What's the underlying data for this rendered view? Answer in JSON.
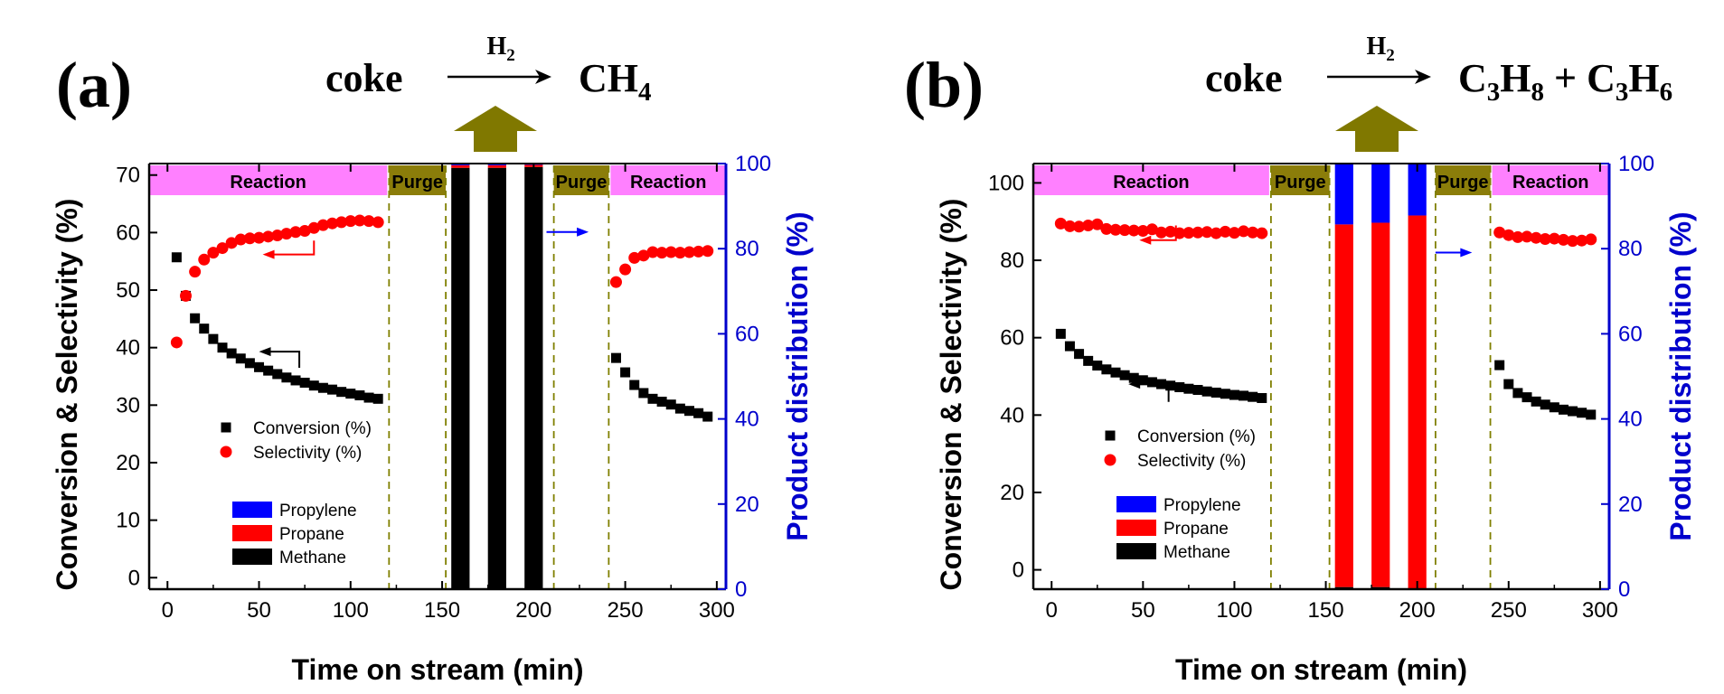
{
  "figure": {
    "colors": {
      "conversion": "#000000",
      "selectivity": "#ff0000",
      "propylene": "#0000ff",
      "propane": "#ff0000",
      "methane": "#000000",
      "reaction_box": "#ff80ff",
      "purge_box": "#8b7d0a",
      "arrow_olive": "#807800",
      "right_axis": "#0000cc",
      "dashed_line": "#808000"
    }
  },
  "chart_data": [
    {
      "panel": "(a)",
      "type": "scatter",
      "equation": {
        "reactant": "coke",
        "over_arrow": "H",
        "over_arrow_sub": "2",
        "product_parts": [
          [
            "CH",
            "4"
          ]
        ]
      },
      "xlabel": "Time on stream (min)",
      "ylabel": "Conversion & Selectivity (%)",
      "y2label": "Product distribution (%)",
      "xlim": [
        -10,
        305
      ],
      "ylim": [
        -2,
        72
      ],
      "y2lim": [
        0,
        100
      ],
      "xticks": [
        0,
        50,
        100,
        150,
        200,
        250,
        300
      ],
      "yticks": [
        0,
        10,
        20,
        30,
        40,
        50,
        60,
        70
      ],
      "y2ticks": [
        0,
        20,
        40,
        60,
        80,
        100
      ],
      "phases": [
        {
          "label": "Reaction",
          "start": -10,
          "end": 120,
          "kind": "reaction"
        },
        {
          "label": "Purge",
          "start": 121,
          "end": 152,
          "kind": "purge"
        },
        {
          "label": "Purge",
          "start": 211,
          "end": 241,
          "kind": "purge"
        },
        {
          "label": "Reaction",
          "start": 242,
          "end": 305,
          "kind": "reaction"
        }
      ],
      "dashed_x": [
        121,
        152,
        211,
        241
      ],
      "series": [
        {
          "name": "Conversion (%)",
          "marker": "square",
          "x": [
            5,
            10,
            15,
            20,
            25,
            30,
            35,
            40,
            45,
            50,
            55,
            60,
            65,
            70,
            75,
            80,
            85,
            90,
            95,
            100,
            105,
            110,
            115,
            245,
            250,
            255,
            260,
            265,
            270,
            275,
            280,
            285,
            290,
            295
          ],
          "y": [
            55.7,
            49.0,
            45.1,
            43.3,
            41.5,
            40.0,
            39.0,
            38.1,
            37.3,
            36.6,
            36.0,
            35.4,
            34.8,
            34.3,
            33.9,
            33.4,
            33.0,
            32.7,
            32.3,
            32.0,
            31.7,
            31.3,
            31.1,
            38.2,
            35.7,
            33.5,
            32.1,
            31.1,
            30.6,
            30.1,
            29.4,
            29.0,
            28.6,
            28.0
          ]
        },
        {
          "name": "Selectivity (%)",
          "marker": "circle",
          "x": [
            5,
            10,
            15,
            20,
            25,
            30,
            35,
            40,
            45,
            50,
            55,
            60,
            65,
            70,
            75,
            80,
            85,
            90,
            95,
            100,
            105,
            110,
            115,
            245,
            250,
            255,
            260,
            265,
            270,
            275,
            280,
            285,
            290,
            295
          ],
          "y": [
            40.9,
            49.0,
            53.2,
            55.3,
            56.5,
            57.3,
            58.2,
            58.8,
            59.0,
            59.1,
            59.3,
            59.5,
            59.8,
            60.1,
            60.3,
            60.8,
            61.3,
            61.6,
            61.8,
            62.0,
            62.1,
            62.0,
            61.8,
            51.4,
            53.6,
            55.6,
            56.0,
            56.6,
            56.5,
            56.6,
            56.5,
            56.6,
            56.7,
            56.8
          ]
        }
      ],
      "bars": [
        {
          "x": 160,
          "width": 10,
          "methane": 99.0,
          "propane": 0.6,
          "propylene": 0.4
        },
        {
          "x": 180,
          "width": 10,
          "methane": 99.0,
          "propane": 0.6,
          "propylene": 0.4
        },
        {
          "x": 200,
          "width": 10,
          "methane": 99.2,
          "propane": 0.5,
          "propylene": 0.3
        }
      ],
      "bar_legend": [
        "Propylene",
        "Propane",
        "Methane"
      ],
      "arrows": [
        {
          "color": "#ff0000",
          "from": [
            80,
            58.6
          ],
          "to": [
            52,
            56.2
          ],
          "kind": "hook-left"
        },
        {
          "color": "#000000",
          "from": [
            72,
            36.5
          ],
          "to": [
            50,
            39.3
          ],
          "kind": "hook-left"
        },
        {
          "color": "#0000ff",
          "from": [
            207,
            60.1
          ],
          "to": [
            230,
            60.1
          ],
          "kind": "straight-right"
        }
      ]
    },
    {
      "panel": "(b)",
      "type": "scatter",
      "equation": {
        "reactant": "coke",
        "over_arrow": "H",
        "over_arrow_sub": "2",
        "product_parts": [
          [
            "C",
            "3"
          ],
          [
            "H",
            "8"
          ],
          [
            " + C",
            "3"
          ],
          [
            "H",
            "6"
          ]
        ]
      },
      "xlabel": "Time on stream (min)",
      "ylabel": "Conversion & Selectivity (%)",
      "y2label": "Product distribution (%)",
      "xlim": [
        -10,
        305
      ],
      "ylim": [
        -5,
        105
      ],
      "y2lim": [
        0,
        100
      ],
      "xticks": [
        0,
        50,
        100,
        150,
        200,
        250,
        300
      ],
      "yticks": [
        0,
        20,
        40,
        60,
        80,
        100
      ],
      "y2ticks": [
        0,
        20,
        40,
        60,
        80,
        100
      ],
      "phases": [
        {
          "label": "Reaction",
          "start": -10,
          "end": 119,
          "kind": "reaction"
        },
        {
          "label": "Purge",
          "start": 120,
          "end": 152,
          "kind": "purge"
        },
        {
          "label": "Purge",
          "start": 210,
          "end": 240,
          "kind": "purge"
        },
        {
          "label": "Reaction",
          "start": 241,
          "end": 305,
          "kind": "reaction"
        }
      ],
      "dashed_x": [
        120,
        152,
        210,
        240
      ],
      "series": [
        {
          "name": "Conversion (%)",
          "marker": "square",
          "x": [
            5,
            10,
            15,
            20,
            25,
            30,
            35,
            40,
            45,
            50,
            55,
            60,
            65,
            70,
            75,
            80,
            85,
            90,
            95,
            100,
            105,
            110,
            115,
            245,
            250,
            255,
            260,
            265,
            270,
            275,
            280,
            285,
            290,
            295
          ],
          "y": [
            61.0,
            57.8,
            55.8,
            54.0,
            52.8,
            51.8,
            51.0,
            50.3,
            49.6,
            49.0,
            48.5,
            48.0,
            47.6,
            47.2,
            46.8,
            46.5,
            46.1,
            45.8,
            45.5,
            45.2,
            45.0,
            44.7,
            44.4,
            52.9,
            48.0,
            45.7,
            44.6,
            43.5,
            42.7,
            42.0,
            41.4,
            41.0,
            40.6,
            40.1
          ]
        },
        {
          "name": "Selectivity (%)",
          "marker": "circle",
          "x": [
            5,
            10,
            15,
            20,
            25,
            30,
            35,
            40,
            45,
            50,
            55,
            60,
            65,
            70,
            75,
            80,
            85,
            90,
            95,
            100,
            105,
            110,
            115,
            245,
            250,
            255,
            260,
            265,
            270,
            275,
            280,
            285,
            290,
            295
          ],
          "y": [
            89.5,
            88.8,
            88.7,
            89.0,
            89.3,
            88.1,
            87.9,
            87.8,
            87.7,
            87.6,
            88.0,
            87.2,
            87.4,
            87.0,
            87.1,
            87.2,
            87.3,
            87.0,
            87.4,
            87.1,
            87.5,
            87.2,
            87.0,
            87.2,
            86.5,
            86.0,
            86.1,
            85.8,
            85.5,
            85.6,
            85.3,
            85.0,
            85.1,
            85.4
          ]
        }
      ],
      "bars": [
        {
          "x": 160,
          "width": 10,
          "methane": 0.5,
          "propane": 85.2,
          "propylene": 14.3
        },
        {
          "x": 180,
          "width": 10,
          "methane": 0.5,
          "propane": 85.6,
          "propylene": 13.9
        },
        {
          "x": 200,
          "width": 10,
          "methane": 0.2,
          "propane": 87.6,
          "propylene": 12.2
        }
      ],
      "bar_legend": [
        "Propylene",
        "Propane",
        "Methane"
      ],
      "arrows": [
        {
          "color": "#ff0000",
          "from": [
            68,
            89.0
          ],
          "to": [
            48,
            85.2
          ],
          "kind": "hook-left"
        },
        {
          "color": "#000000",
          "from": [
            64,
            43.4
          ],
          "to": [
            42,
            48.0
          ],
          "kind": "hook-left"
        },
        {
          "color": "#0000ff",
          "from": [
            210,
            82.0
          ],
          "to": [
            230,
            82.0
          ],
          "kind": "straight-right"
        }
      ]
    }
  ]
}
